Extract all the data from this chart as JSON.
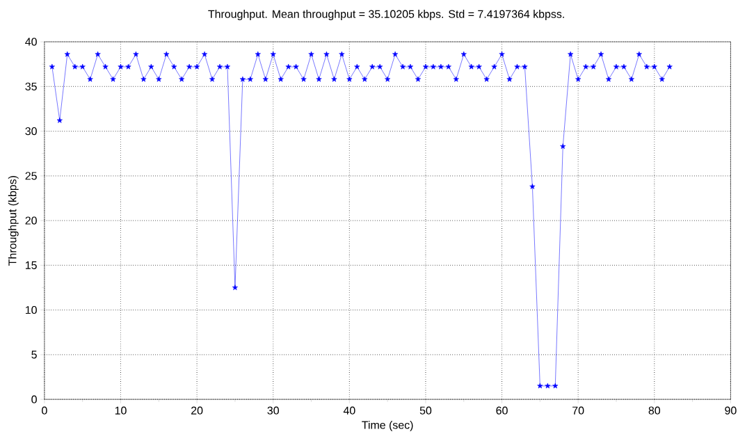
{
  "chart_data": {
    "type": "line",
    "title": "Throughput. Mean throughput = 35.10205 kbps. Std = 7.4197364 kbpss.",
    "xlabel": "Time (sec)",
    "ylabel": "Throughput (kbps)",
    "x": [
      1,
      2,
      3,
      4,
      5,
      6,
      7,
      8,
      9,
      10,
      11,
      12,
      13,
      14,
      15,
      16,
      17,
      18,
      19,
      20,
      21,
      22,
      23,
      24,
      25,
      26,
      27,
      28,
      29,
      30,
      31,
      32,
      33,
      34,
      35,
      36,
      37,
      38,
      39,
      40,
      41,
      42,
      43,
      44,
      45,
      46,
      47,
      48,
      49,
      50,
      51,
      52,
      53,
      54,
      55,
      56,
      57,
      58,
      59,
      60,
      61,
      62,
      63,
      64,
      65,
      66,
      67,
      68,
      69,
      70,
      71,
      72,
      73,
      74,
      75,
      76,
      77,
      78,
      79,
      80,
      81,
      82
    ],
    "series": [
      {
        "color": "#0000ff",
        "values": [
          37.2,
          31.2,
          38.6,
          37.2,
          37.2,
          35.8,
          38.6,
          37.2,
          35.8,
          37.2,
          37.2,
          38.6,
          35.8,
          37.2,
          35.8,
          38.6,
          37.2,
          35.8,
          37.2,
          37.2,
          38.6,
          35.8,
          37.2,
          37.2,
          12.5,
          35.8,
          35.8,
          38.6,
          35.8,
          38.6,
          35.8,
          37.2,
          37.2,
          35.8,
          38.6,
          35.8,
          38.6,
          35.8,
          38.6,
          35.8,
          37.2,
          35.8,
          37.2,
          37.2,
          35.8,
          38.6,
          37.2,
          37.2,
          35.8,
          37.2,
          37.2,
          37.2,
          37.2,
          35.8,
          38.6,
          37.2,
          37.2,
          35.8,
          37.2,
          38.6,
          35.8,
          37.2,
          37.2,
          23.8,
          1.5,
          1.5,
          1.5,
          28.3,
          38.6,
          35.8,
          37.2,
          37.2,
          38.6,
          35.8,
          37.2,
          37.2,
          35.8,
          38.6,
          37.2,
          37.2,
          35.8,
          37.2
        ]
      }
    ],
    "xlim": [
      0,
      90
    ],
    "xticks": [
      0,
      10,
      20,
      30,
      40,
      50,
      60,
      70,
      80,
      90
    ],
    "ylim": [
      0,
      40
    ],
    "yticks": [
      0,
      5,
      10,
      15,
      20,
      25,
      30,
      35,
      40
    ],
    "grid": true,
    "marker": "star",
    "line_style": "solid"
  }
}
